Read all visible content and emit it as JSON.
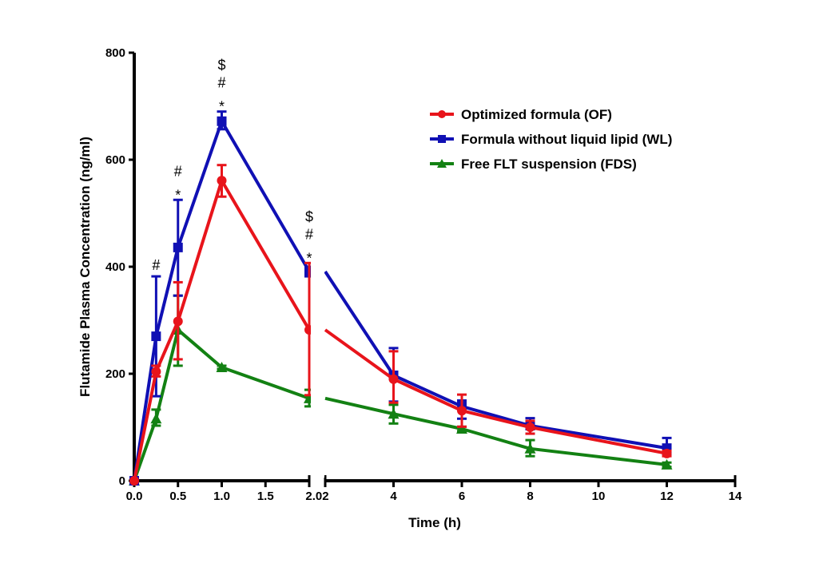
{
  "chart_data": {
    "type": "line",
    "title": "",
    "xlabel": "Time (h)",
    "ylabel": "Flutamide Plasma Concentration (ng/ml)",
    "ylim": [
      0,
      800
    ],
    "yticks": [
      0,
      200,
      400,
      600,
      800
    ],
    "x_axis_segments": [
      {
        "range": [
          0,
          2.0
        ],
        "ticks": [
          0.0,
          0.5,
          1.0,
          1.5,
          2.0
        ],
        "tick_labels": [
          "0.0",
          "0.5",
          "1.0",
          "1.5",
          "2.0"
        ]
      },
      {
        "range": [
          2,
          14
        ],
        "ticks": [
          2,
          4,
          6,
          8,
          10,
          12,
          14
        ],
        "tick_labels": [
          "2",
          "4",
          "6",
          "8",
          "10",
          "12",
          "14"
        ]
      }
    ],
    "x_break_label": "2.02",
    "x": [
      0,
      0.25,
      0.5,
      1.0,
      2.0,
      4,
      6,
      8,
      12
    ],
    "series": [
      {
        "name": "Optimized formula (OF)",
        "color": "#e8141b",
        "marker": "circle",
        "values": [
          0,
          204,
          298,
          561,
          282,
          190,
          131,
          100,
          51
        ],
        "err_upper": [
          0,
          215,
          371,
          590,
          407,
          242,
          161,
          112,
          56
        ],
        "err_lower": [
          0,
          195,
          227,
          531,
          160,
          146,
          101,
          88,
          46
        ]
      },
      {
        "name": "Formula without liquid lipid (WL)",
        "color": "#1010b4",
        "marker": "square",
        "values": [
          0,
          270,
          436,
          672,
          391,
          197,
          139,
          103,
          61
        ],
        "err_upper": [
          0,
          382,
          525,
          690,
          400,
          248,
          150,
          117,
          80
        ],
        "err_lower": [
          0,
          158,
          346,
          657,
          382,
          148,
          116,
          88,
          50
        ]
      },
      {
        "name": "Free FLT suspension (FDS)",
        "color": "#138113",
        "marker": "triangle",
        "values": [
          0,
          116,
          282,
          212,
          154,
          125,
          97,
          60,
          30
        ],
        "err_upper": [
          0,
          133,
          346,
          215,
          170,
          142,
          101,
          76,
          34
        ],
        "err_lower": [
          0,
          103,
          215,
          209,
          139,
          107,
          93,
          46,
          26
        ]
      }
    ],
    "annotations": [
      {
        "x": 0.25,
        "symbols": [
          "#"
        ]
      },
      {
        "x": 0.5,
        "symbols": [
          "#",
          "*"
        ]
      },
      {
        "x": 1.0,
        "symbols": [
          "$",
          "#",
          "*"
        ]
      },
      {
        "x": 2.0,
        "symbols": [
          "$",
          "#",
          "*"
        ]
      }
    ],
    "legend_position": "top-right",
    "grid": false
  }
}
